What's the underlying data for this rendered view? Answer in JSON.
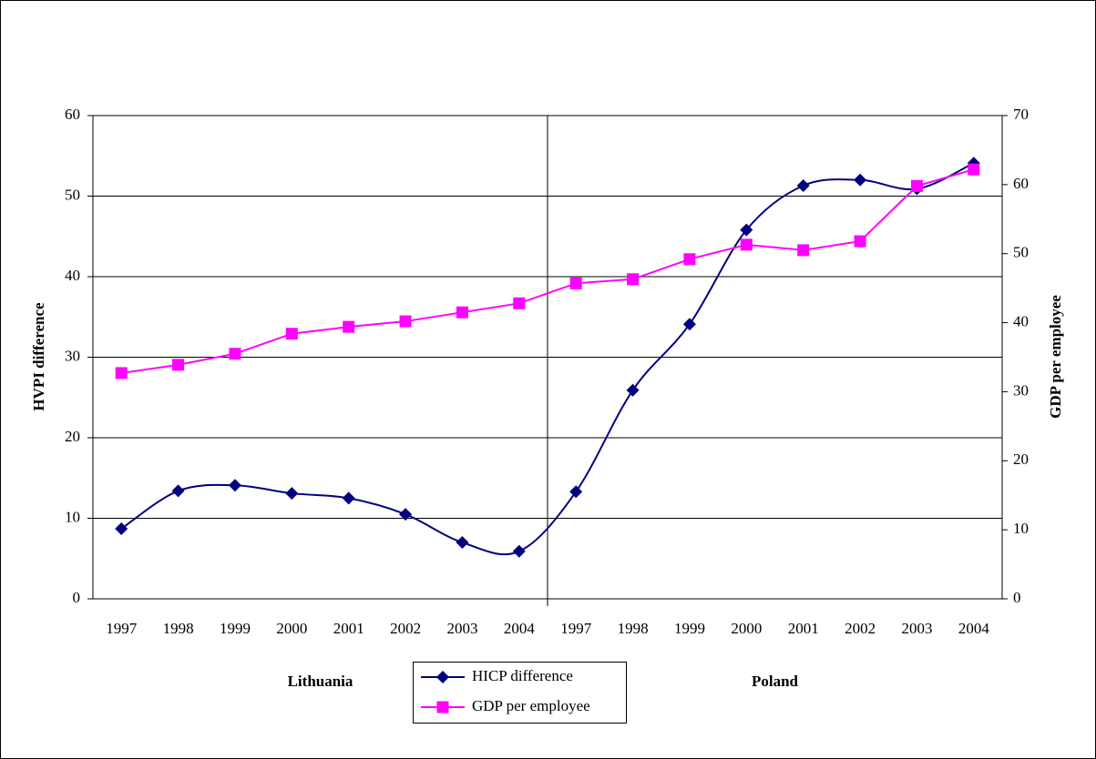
{
  "chart_data": {
    "type": "line",
    "categories": [
      "1997",
      "1998",
      "1999",
      "2000",
      "2001",
      "2002",
      "2003",
      "2004",
      "1997",
      "1998",
      "1999",
      "2000",
      "2001",
      "2002",
      "2003",
      "2004"
    ],
    "group_labels": [
      "Lithuania",
      "Poland"
    ],
    "y_label": "HVPI difference",
    "y2_label": "GDP per employee",
    "ylim": [
      0,
      60
    ],
    "yticks": [
      0,
      10,
      20,
      30,
      40,
      50,
      60
    ],
    "y2lim": [
      0,
      70
    ],
    "y2ticks": [
      0,
      10,
      20,
      30,
      40,
      50,
      60,
      70
    ],
    "grid": true,
    "legend": "bottom",
    "series": [
      {
        "name": "HICP difference",
        "color": "#000080",
        "marker": "diamond",
        "smooth": true,
        "values": [
          8.7,
          13.4,
          14.1,
          13.1,
          12.5,
          10.5,
          7.0,
          5.9,
          13.3,
          25.9,
          34.1,
          45.8,
          51.3,
          52.0,
          50.9,
          54.1
        ]
      },
      {
        "name": "GDP per employee",
        "color": "#ff00ff",
        "marker": "square",
        "axis": "y2",
        "smooth": false,
        "values": [
          32.7,
          33.9,
          35.5,
          38.4,
          39.4,
          40.2,
          41.5,
          42.8,
          45.7,
          46.3,
          49.2,
          51.3,
          50.5,
          51.8,
          59.8,
          62.2
        ]
      }
    ]
  }
}
